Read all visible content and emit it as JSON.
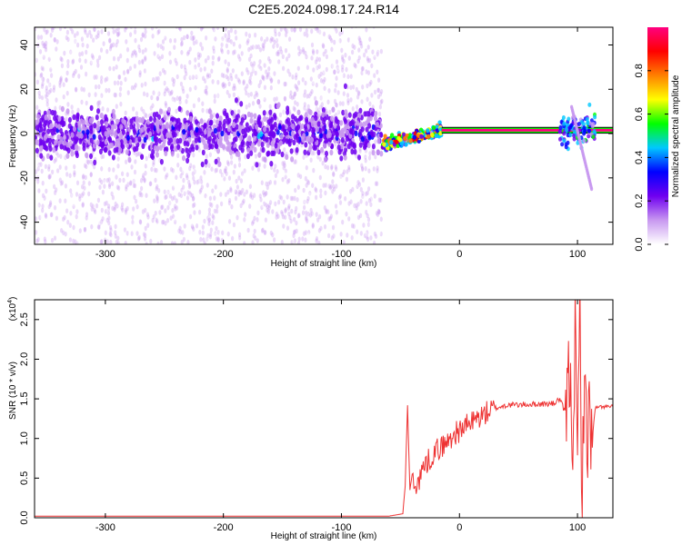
{
  "title": "C2E5.2024.098.17.24.R14",
  "chart_data": [
    {
      "type": "heatmap",
      "xlabel": "Height of straight line (km)",
      "ylabel": "Frequency (Hz)",
      "xlim": [
        -360,
        130
      ],
      "ylim": [
        -50,
        48
      ],
      "xticks": [
        -300,
        -200,
        -100,
        0,
        100
      ],
      "yticks": [
        -40,
        -20,
        0,
        20,
        40
      ],
      "colorbar": {
        "label": "Normalized spectral amplitude",
        "range": [
          0,
          1
        ],
        "ticks": [
          0.0,
          0.2,
          0.4,
          0.6,
          0.8
        ],
        "colormap": "rainbow",
        "colors": [
          "#ffffff",
          "#c898f0",
          "#7000f0",
          "#0000ff",
          "#00c8ff",
          "#00ff00",
          "#ffff00",
          "#ff8000",
          "#ff0000",
          "#ff0080"
        ]
      },
      "features": [
        {
          "name": "noise",
          "x": [
            -360,
            -65
          ],
          "frequency_center": 0,
          "frequency_spread": 50
        },
        {
          "name": "transition",
          "x": [
            -65,
            -15
          ],
          "frequency_from": -5,
          "frequency_to": 1.5
        },
        {
          "name": "carrier",
          "x": [
            -15,
            130
          ],
          "frequency": 1.5
        },
        {
          "name": "diagonal-streak",
          "x": [
            95,
            112
          ],
          "frequency_from": 12,
          "frequency_to": -25
        }
      ]
    },
    {
      "type": "line",
      "xlabel": "Height of straight line (km)",
      "ylabel": "SNR (10 * v/v)",
      "yscale_note": "(x10",
      "yscale_exp": "4",
      "xlim": [
        -360,
        130
      ],
      "ylim": [
        0,
        2.75
      ],
      "xticks": [
        -300,
        -200,
        -100,
        0,
        100
      ],
      "yticks": [
        0.0,
        0.5,
        1.0,
        1.5,
        2.0,
        2.5
      ],
      "color": "#ee3333",
      "series": [
        {
          "x": [
            -360,
            -300,
            -200,
            -100,
            -60,
            -48,
            -46,
            -44,
            -42,
            -40,
            -38,
            -36,
            -34,
            -32,
            -30,
            -25,
            -20,
            -15,
            -10,
            -5,
            0,
            10,
            20,
            30,
            40,
            60,
            80,
            85,
            90,
            93,
            96,
            98,
            100,
            102,
            104,
            106,
            108,
            110,
            112,
            115,
            120,
            130
          ],
          "y": [
            0.02,
            0.02,
            0.02,
            0.02,
            0.02,
            0.05,
            0.4,
            1.42,
            0.35,
            0.55,
            0.3,
            0.5,
            0.45,
            0.6,
            0.65,
            0.75,
            0.85,
            0.9,
            0.95,
            1.05,
            1.1,
            1.2,
            1.3,
            1.38,
            1.42,
            1.43,
            1.44,
            1.5,
            1.3,
            1.8,
            1.1,
            2.3,
            0.6,
            2.7,
            0.1,
            2.2,
            0.5,
            1.7,
            0.9,
            1.38,
            1.4,
            1.4
          ]
        }
      ]
    }
  ]
}
